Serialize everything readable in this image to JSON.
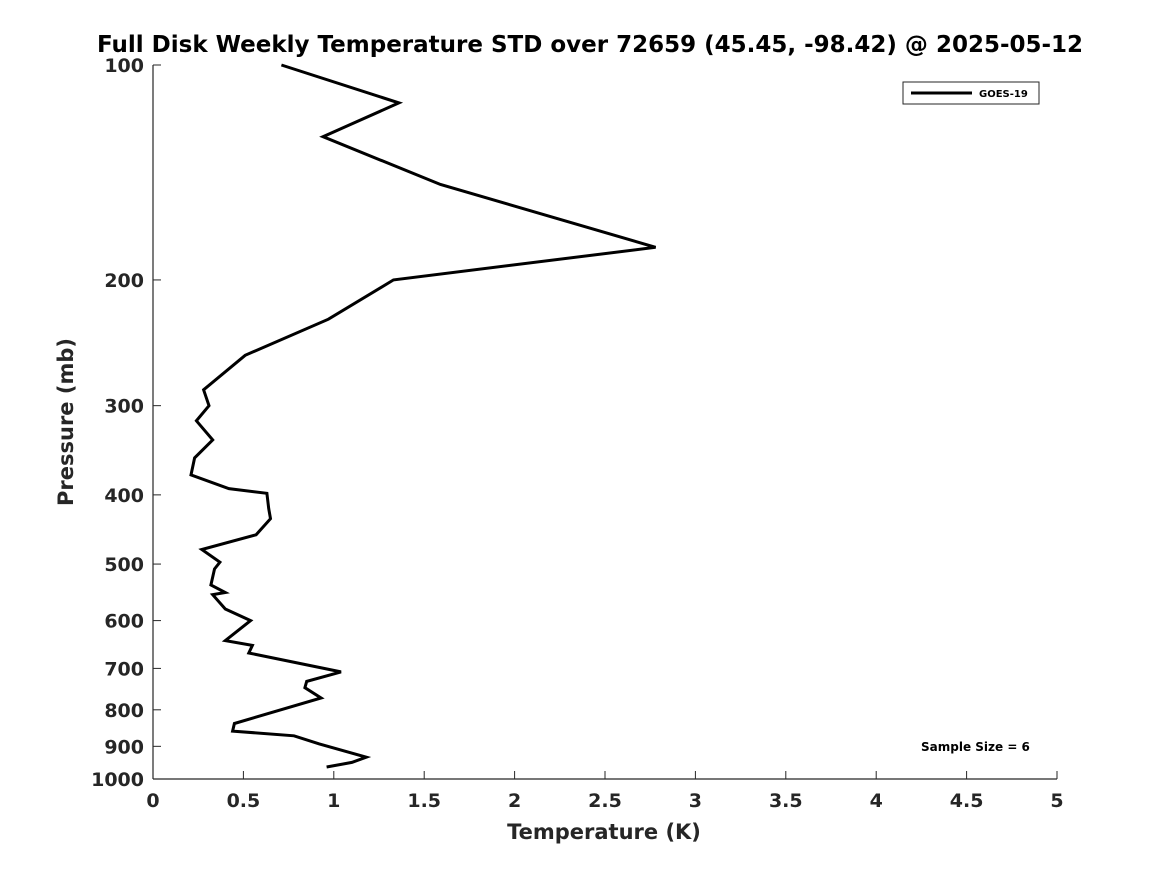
{
  "chart_data": {
    "type": "line",
    "title": "Full Disk Weekly Temperature STD over 72659 (45.45, -98.42) @ 2025-05-12",
    "xlabel": "Temperature (K)",
    "ylabel": "Pressure (mb)",
    "xlim": [
      0,
      5
    ],
    "ylim": [
      1000,
      100
    ],
    "y_scale": "log",
    "y_reversed": true,
    "grid": false,
    "legend_position": "top-right",
    "x_ticks": [
      "0",
      "0.5",
      "1",
      "1.5",
      "2",
      "2.5",
      "3",
      "3.5",
      "4",
      "4.5",
      "5"
    ],
    "x_tick_values": [
      0,
      0.5,
      1,
      1.5,
      2,
      2.5,
      3,
      3.5,
      4,
      4.5,
      5
    ],
    "y_ticks": [
      "100",
      "200",
      "300",
      "400",
      "500",
      "600",
      "700",
      "800",
      "900",
      "1000"
    ],
    "y_tick_values": [
      100,
      200,
      300,
      400,
      500,
      600,
      700,
      800,
      900,
      1000
    ],
    "series": [
      {
        "name": "GOES-19",
        "color": "#000000",
        "x": [
          0.71,
          1.36,
          0.94,
          1.59,
          2.78,
          1.33,
          0.97,
          0.51,
          0.28,
          0.31,
          0.24,
          0.33,
          0.23,
          0.21,
          0.42,
          0.63,
          0.64,
          0.65,
          0.57,
          0.27,
          0.37,
          0.34,
          0.32,
          0.4,
          0.33,
          0.4,
          0.54,
          0.4,
          0.55,
          0.53,
          1.04,
          0.85,
          0.84,
          0.93,
          0.45,
          0.44,
          0.78,
          0.92,
          1.18,
          1.1,
          0.96
        ],
        "y": [
          100,
          113,
          126,
          147,
          180,
          200,
          227,
          255,
          285,
          300,
          315,
          335,
          355,
          375,
          392,
          398,
          418,
          432,
          455,
          477,
          497,
          508,
          535,
          548,
          552,
          578,
          600,
          640,
          650,
          666,
          708,
          730,
          745,
          770,
          836,
          857,
          870,
          893,
          932,
          948,
          962
        ]
      }
    ],
    "annotations": [
      "Sample Size = 6"
    ]
  }
}
